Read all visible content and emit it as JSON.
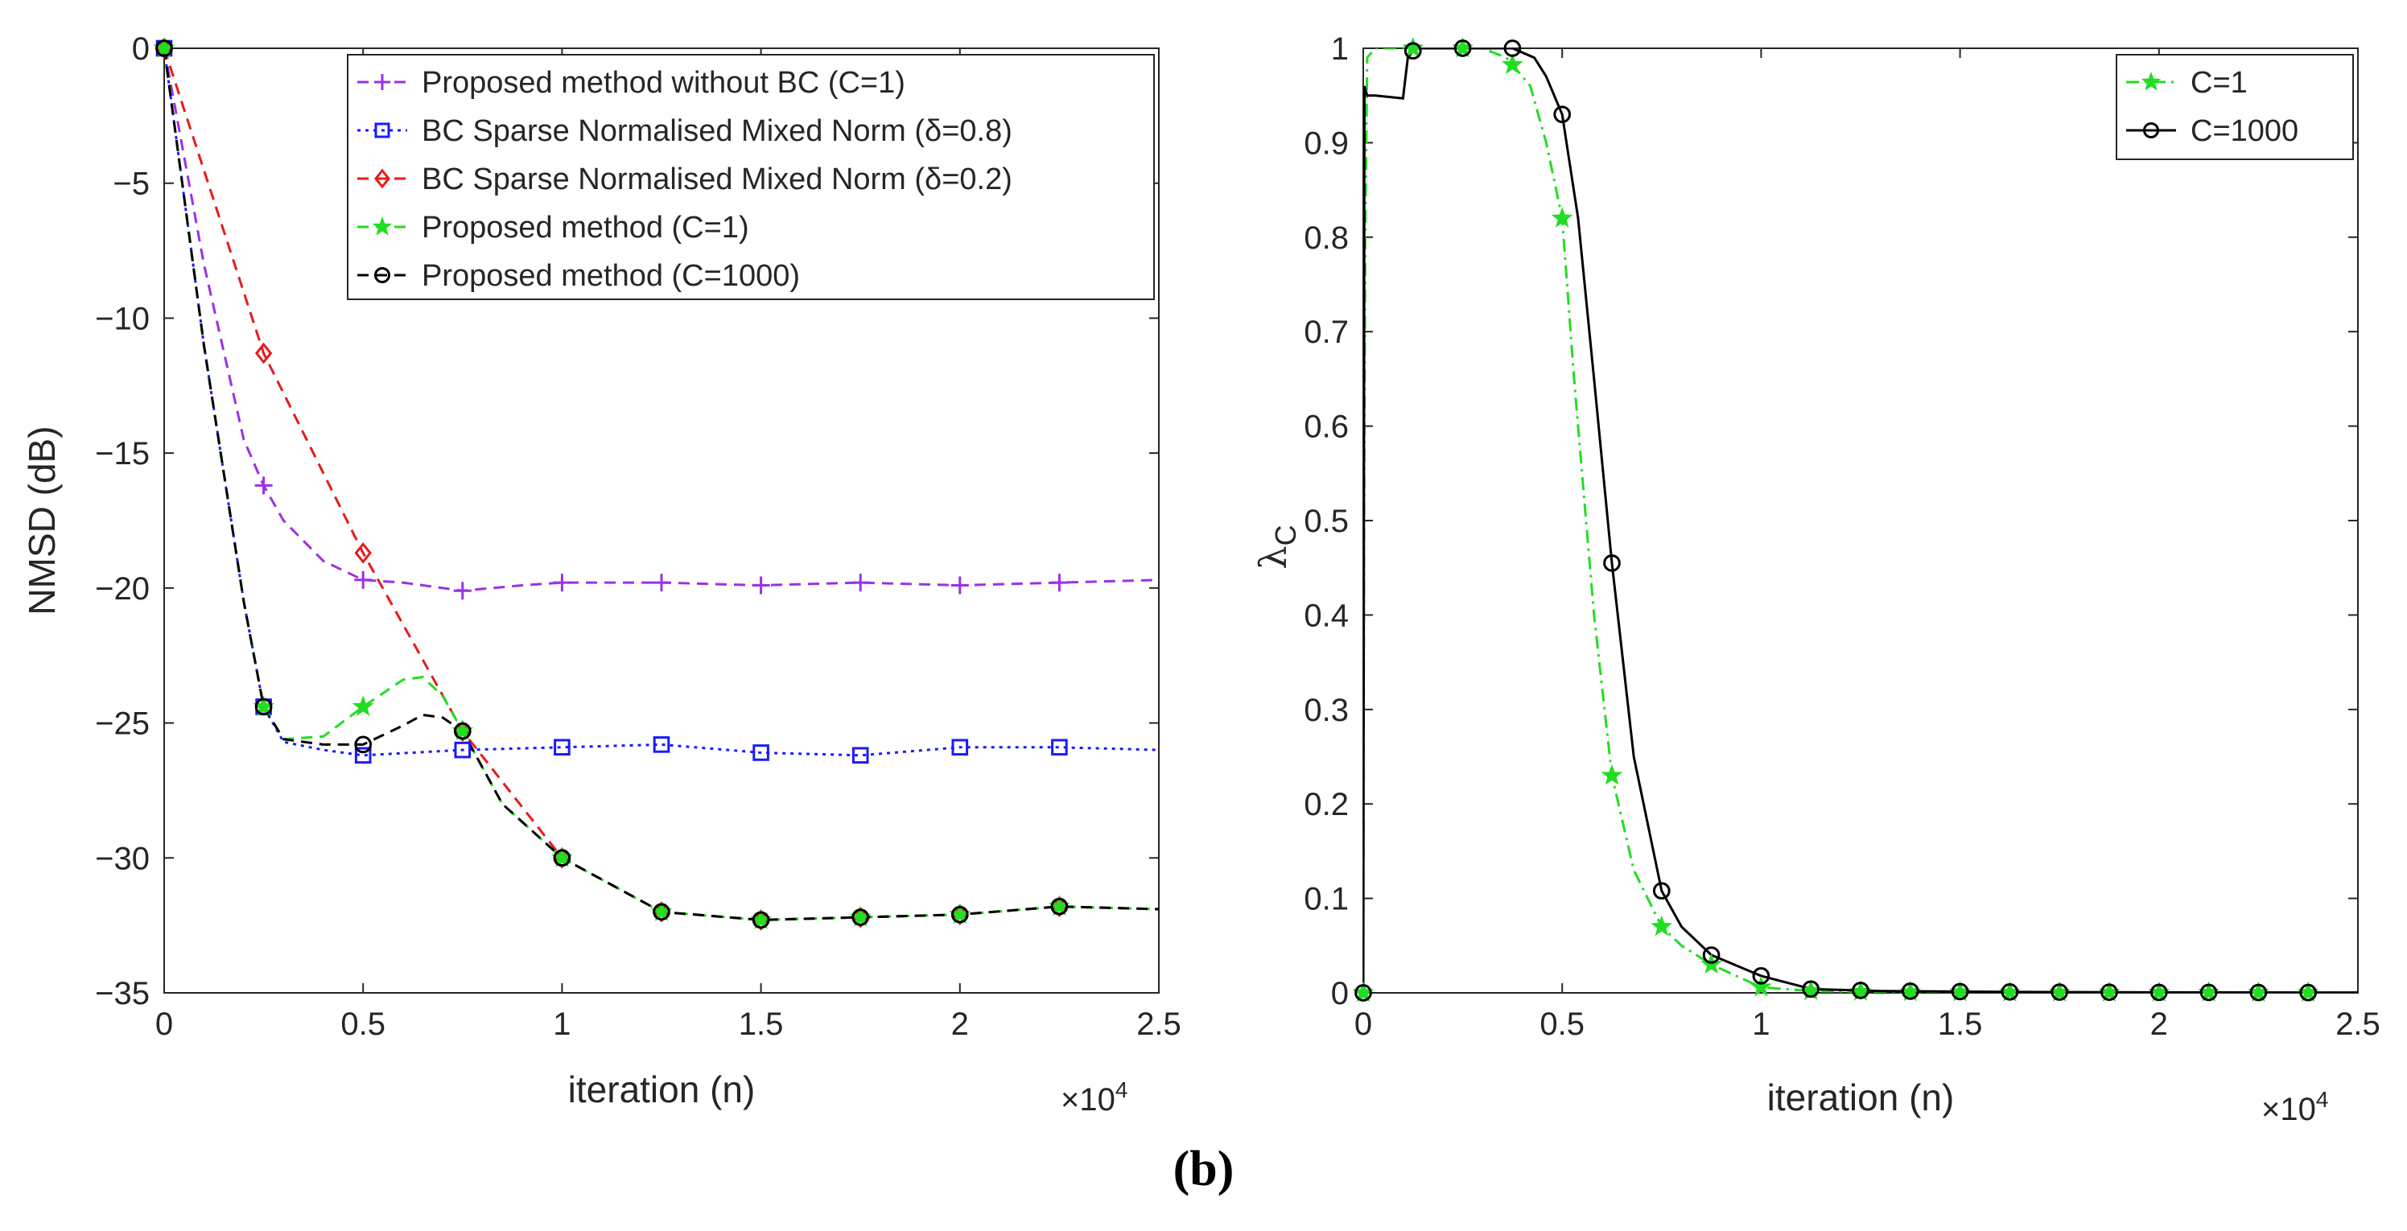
{
  "caption": "(b)",
  "chart_data": [
    {
      "type": "line",
      "xlabel": "iteration (n)",
      "ylabel": "NMSD (dB)",
      "x_multiplier": "×10",
      "x_multiplier_exp": "4",
      "xlim": [
        0,
        2.5
      ],
      "ylim": [
        -35,
        0
      ],
      "xticks": [
        0,
        0.5,
        1,
        1.5,
        2,
        2.5
      ],
      "xtick_labels": [
        "0",
        "0.5",
        "1",
        "1.5",
        "2",
        "2.5"
      ],
      "yticks": [
        0,
        -5,
        -10,
        -15,
        -20,
        -25,
        -30,
        -35
      ],
      "ytick_labels": [
        "0",
        "−5",
        "−10",
        "−15",
        "−20",
        "−25",
        "−30",
        "−35"
      ],
      "legend_position": "top-right",
      "series": [
        {
          "name": "Proposed method without BC (C=1)",
          "color": "#9b30e6",
          "dash": "dashed",
          "marker": "plus",
          "x": [
            0,
            0.1,
            0.2,
            0.25,
            0.3,
            0.4,
            0.5,
            0.6,
            0.75,
            0.9,
            1.0,
            1.25,
            1.5,
            1.75,
            2.0,
            2.25,
            2.5
          ],
          "values": [
            0,
            -8,
            -14.5,
            -16.2,
            -17.5,
            -19,
            -19.7,
            -19.8,
            -20.1,
            -19.9,
            -19.8,
            -19.8,
            -19.9,
            -19.8,
            -19.9,
            -19.8,
            -19.7
          ],
          "marker_x": [
            0,
            0.25,
            0.5,
            0.75,
            1.0,
            1.25,
            1.5,
            1.75,
            2.0,
            2.25
          ]
        },
        {
          "name": "BC Sparse Normalised Mixed Norm (δ=0.8)",
          "color": "#1a1aff",
          "dash": "dotted",
          "marker": "square",
          "x": [
            0,
            0.1,
            0.2,
            0.25,
            0.3,
            0.4,
            0.5,
            0.75,
            1.0,
            1.25,
            1.5,
            1.75,
            2.0,
            2.25,
            2.5
          ],
          "values": [
            0,
            -11,
            -20.5,
            -24.4,
            -25.7,
            -26,
            -26.2,
            -26.0,
            -25.9,
            -25.8,
            -26.1,
            -26.2,
            -25.9,
            -25.9,
            -26.0
          ],
          "marker_x": [
            0,
            0.25,
            0.5,
            0.75,
            1.0,
            1.25,
            1.5,
            1.75,
            2.0,
            2.25
          ]
        },
        {
          "name": "BC Sparse Normalised Mixed Norm (δ=0.2)",
          "color": "#e81a1a",
          "dash": "dashed",
          "marker": "diamond",
          "x": [
            0,
            0.25,
            0.5,
            0.75,
            1.0,
            1.25,
            1.5,
            1.75,
            2.0,
            2.25,
            2.5
          ],
          "values": [
            0,
            -11.3,
            -18.7,
            -25.3,
            -30.0,
            -32.0,
            -32.3,
            -32.2,
            -32.1,
            -31.8,
            -31.9
          ],
          "marker_x": [
            0,
            0.25,
            0.5,
            0.75,
            1.0,
            1.25,
            1.5,
            1.75,
            2.0,
            2.25
          ]
        },
        {
          "name": "Proposed method (C=1)",
          "color": "#22dd22",
          "dash": "dashed",
          "marker": "star",
          "x": [
            0,
            0.1,
            0.2,
            0.25,
            0.3,
            0.4,
            0.5,
            0.6,
            0.65,
            0.7,
            0.75,
            0.85,
            1.0,
            1.25,
            1.5,
            1.75,
            2.0,
            2.25,
            2.5
          ],
          "values": [
            0,
            -11,
            -20.5,
            -24.4,
            -25.6,
            -25.5,
            -24.4,
            -23.4,
            -23.3,
            -24.0,
            -25.3,
            -28.0,
            -30.0,
            -32.0,
            -32.3,
            -32.2,
            -32.1,
            -31.8,
            -31.9
          ],
          "marker_x": [
            0,
            0.25,
            0.5,
            0.75,
            1.0,
            1.25,
            1.5,
            1.75,
            2.0,
            2.25
          ]
        },
        {
          "name": "Proposed method (C=1000)",
          "color": "#000000",
          "dash": "dashed",
          "marker": "circle",
          "x": [
            0,
            0.1,
            0.2,
            0.25,
            0.3,
            0.4,
            0.5,
            0.6,
            0.65,
            0.7,
            0.75,
            0.85,
            1.0,
            1.25,
            1.5,
            1.75,
            2.0,
            2.25,
            2.5
          ],
          "values": [
            0,
            -11,
            -20.5,
            -24.4,
            -25.6,
            -25.8,
            -25.8,
            -25.1,
            -24.7,
            -24.8,
            -25.3,
            -28.0,
            -30.0,
            -32.0,
            -32.3,
            -32.2,
            -32.1,
            -31.8,
            -31.9
          ],
          "marker_x": [
            0,
            0.25,
            0.5,
            0.75,
            1.0,
            1.25,
            1.5,
            1.75,
            2.0,
            2.25
          ]
        }
      ]
    },
    {
      "type": "line",
      "xlabel": "iteration (n)",
      "ylabel": "λC",
      "ylabel_main": "λ",
      "ylabel_sub": "C",
      "x_multiplier": "×10",
      "x_multiplier_exp": "4",
      "xlim": [
        0,
        2.5
      ],
      "ylim": [
        0,
        1
      ],
      "xticks": [
        0,
        0.5,
        1,
        1.5,
        2,
        2.5
      ],
      "xtick_labels": [
        "0",
        "0.5",
        "1",
        "1.5",
        "2",
        "2.5"
      ],
      "yticks": [
        0,
        0.1,
        0.2,
        0.3,
        0.4,
        0.5,
        0.6,
        0.7,
        0.8,
        0.9,
        1
      ],
      "ytick_labels": [
        "0",
        "0.1",
        "0.2",
        "0.3",
        "0.4",
        "0.5",
        "0.6",
        "0.7",
        "0.8",
        "0.9",
        "1"
      ],
      "legend_position": "top-right",
      "series": [
        {
          "name": "C=1",
          "color": "#22dd22",
          "dash": "dashdot",
          "marker": "star",
          "x": [
            0,
            0.002,
            0.005,
            0.01,
            0.03,
            0.1,
            0.3,
            0.36,
            0.42,
            0.46,
            0.5,
            0.53,
            0.55,
            0.58,
            0.625,
            0.68,
            0.75,
            0.8,
            0.875,
            1.0,
            1.125,
            1.3,
            1.6,
            2.0,
            2.375,
            2.5
          ],
          "values": [
            0,
            0.5,
            0.8,
            0.99,
            1.0,
            1.0,
            1.0,
            0.99,
            0.96,
            0.9,
            0.82,
            0.65,
            0.55,
            0.4,
            0.23,
            0.13,
            0.07,
            0.05,
            0.03,
            0.006,
            0.002,
            0.001,
            0.0005,
            0.0003,
            0.0002,
            0.0002
          ],
          "marker_x": [
            0,
            0.125,
            0.25,
            0.375,
            0.5,
            0.625,
            0.75,
            0.875,
            1.0,
            1.125,
            1.25,
            1.375,
            1.5,
            1.625,
            1.75,
            1.875,
            2.0,
            2.125,
            2.25,
            2.375
          ]
        },
        {
          "name": "C=1000",
          "color": "#000000",
          "dash": "solid",
          "marker": "circle",
          "x": [
            0,
            0.003,
            0.01,
            0.03,
            0.1,
            0.112,
            0.13,
            0.25,
            0.375,
            0.43,
            0.46,
            0.5,
            0.54,
            0.58,
            0.625,
            0.68,
            0.75,
            0.8,
            0.875,
            1.0,
            1.1,
            1.125,
            1.3,
            1.6,
            2.0,
            2.375,
            2.5
          ],
          "values": [
            0,
            0.96,
            0.95,
            0.95,
            0.947,
            0.99,
            1.0,
            1.0,
            1.0,
            0.99,
            0.97,
            0.93,
            0.82,
            0.65,
            0.455,
            0.25,
            0.108,
            0.07,
            0.04,
            0.018,
            0.007,
            0.004,
            0.002,
            0.001,
            0.0005,
            0.0003,
            0.0003
          ],
          "marker_x": [
            0,
            0.125,
            0.25,
            0.375,
            0.5,
            0.625,
            0.75,
            0.875,
            1.0,
            1.125,
            1.25,
            1.375,
            1.5,
            1.625,
            1.75,
            1.875,
            2.0,
            2.125,
            2.25,
            2.375
          ]
        }
      ]
    }
  ]
}
